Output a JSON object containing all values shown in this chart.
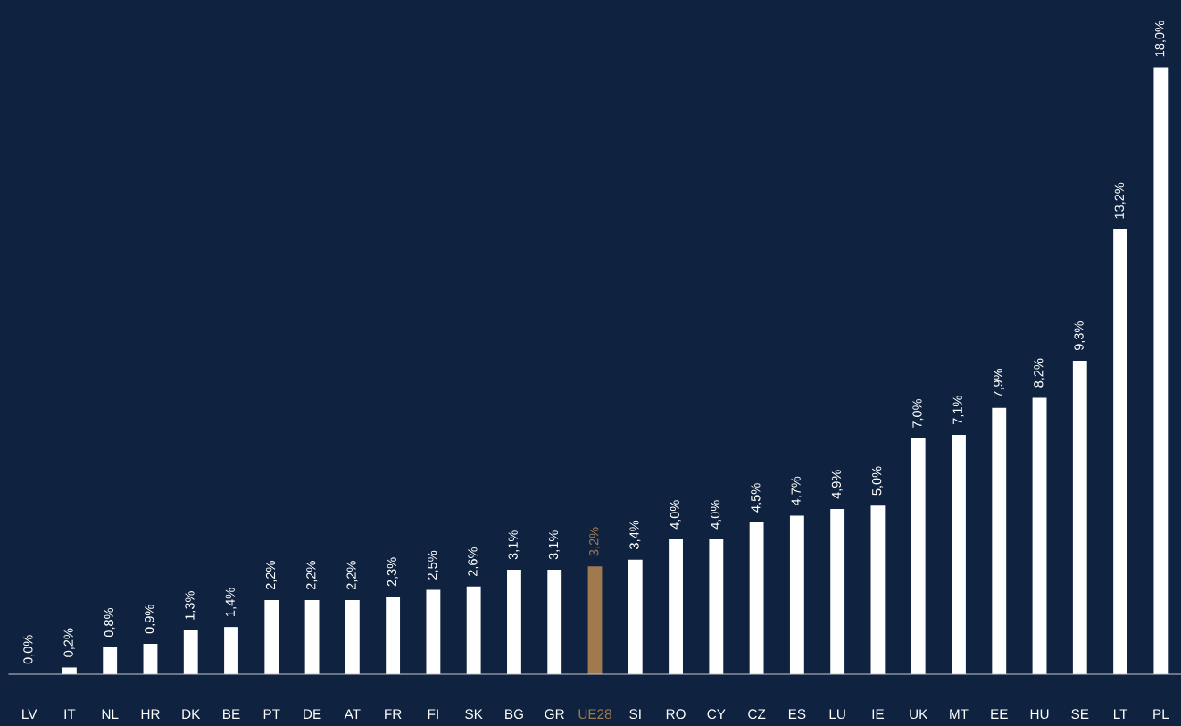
{
  "chart_data": {
    "type": "bar",
    "categories": [
      "LV",
      "IT",
      "NL",
      "HR",
      "DK",
      "BE",
      "PT",
      "DE",
      "AT",
      "FR",
      "FI",
      "SK",
      "BG",
      "GR",
      "UE28",
      "SI",
      "RO",
      "CY",
      "CZ",
      "ES",
      "LU",
      "IE",
      "UK",
      "MT",
      "EE",
      "HU",
      "SE",
      "LT",
      "PL"
    ],
    "values": [
      0.0,
      0.2,
      0.8,
      0.9,
      1.3,
      1.4,
      2.2,
      2.2,
      2.2,
      2.3,
      2.5,
      2.6,
      3.1,
      3.1,
      3.2,
      3.4,
      4.0,
      4.0,
      4.5,
      4.7,
      4.9,
      5.0,
      7.0,
      7.1,
      7.9,
      8.2,
      9.3,
      13.2,
      18.0
    ],
    "value_labels": [
      "0,0%",
      "0,2%",
      "0,8%",
      "0,9%",
      "1,3%",
      "1,4%",
      "2,2%",
      "2,2%",
      "2,2%",
      "2,3%",
      "2,5%",
      "2,6%",
      "3,1%",
      "3,1%",
      "3,2%",
      "3,4%",
      "4,0%",
      "4,0%",
      "4,5%",
      "4,7%",
      "4,9%",
      "5,0%",
      "7,0%",
      "7,1%",
      "7,9%",
      "8,2%",
      "9,3%",
      "13,2%",
      "18,0%"
    ],
    "colors": [
      "#ffffff",
      "#ffffff",
      "#ffffff",
      "#ffffff",
      "#ffffff",
      "#ffffff",
      "#ffffff",
      "#ffffff",
      "#ffffff",
      "#ffffff",
      "#ffffff",
      "#ffffff",
      "#ffffff",
      "#ffffff",
      "#a07a4e",
      "#ffffff",
      "#ffffff",
      "#ffffff",
      "#ffffff",
      "#ffffff",
      "#ffffff",
      "#ffffff",
      "#ffffff",
      "#ffffff",
      "#ffffff",
      "#ffffff",
      "#ffffff",
      "#ffffff",
      "#ffffff"
    ],
    "tick_labels": "x",
    "grid": false
  }
}
